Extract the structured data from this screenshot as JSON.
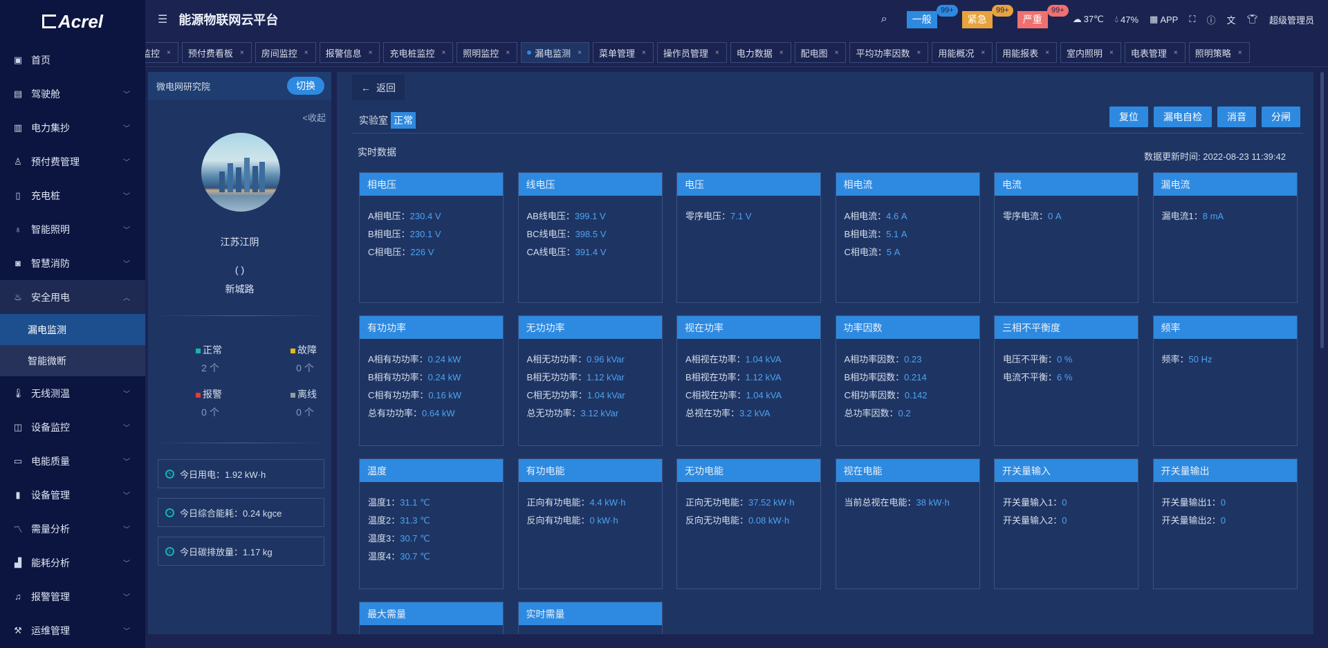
{
  "brand": "Acrel",
  "app_title": "能源物联网云平台",
  "colors": {
    "accent": "#2e8ae0",
    "value": "#4da3f0",
    "general": "#2e8ae0",
    "urgent": "#e8a33d",
    "severe": "#f07070",
    "normal": "#17b3b0",
    "fault": "#e5b619",
    "alarm": "#e83a3a",
    "offline": "#9a9a9a"
  },
  "header": {
    "alarms": [
      {
        "label": "一般",
        "count": "99+"
      },
      {
        "label": "紧急",
        "count": "99+"
      },
      {
        "label": "严重",
        "count": "99+"
      }
    ],
    "temperature": "37℃",
    "humidity": "47%",
    "app": "APP",
    "user": "超级管理员"
  },
  "sidebar": {
    "items": [
      {
        "label": "首页",
        "icon": "home-icon"
      },
      {
        "label": "驾驶舱",
        "icon": "cockpit-icon",
        "chev": true
      },
      {
        "label": "电力集抄",
        "icon": "meter-icon",
        "chev": true
      },
      {
        "label": "预付费管理",
        "icon": "user-icon",
        "chev": true
      },
      {
        "label": "充电桩",
        "icon": "charger-icon",
        "chev": true
      },
      {
        "label": "智能照明",
        "icon": "bulb-icon",
        "chev": true
      },
      {
        "label": "智慧消防",
        "icon": "fire-safety-icon",
        "chev": true
      },
      {
        "label": "安全用电",
        "icon": "flame-icon",
        "chev": true,
        "open": true,
        "children": [
          {
            "label": "漏电监测",
            "active": true
          },
          {
            "label": "智能微断"
          }
        ]
      },
      {
        "label": "无线测温",
        "icon": "thermometer-icon",
        "chev": true
      },
      {
        "label": "设备监控",
        "icon": "monitor-icon",
        "chev": true
      },
      {
        "label": "电能质量",
        "icon": "power-quality-icon",
        "chev": true
      },
      {
        "label": "设备管理",
        "icon": "device-icon",
        "chev": true
      },
      {
        "label": "需量分析",
        "icon": "trend-icon",
        "chev": true
      },
      {
        "label": "能耗分析",
        "icon": "bar-chart-icon",
        "chev": true
      },
      {
        "label": "报警管理",
        "icon": "bell-icon",
        "chev": true
      },
      {
        "label": "运维管理",
        "icon": "maintenance-icon",
        "chev": true
      }
    ]
  },
  "tabs": [
    {
      "label": "监控"
    },
    {
      "label": "预付费看板"
    },
    {
      "label": "房间监控"
    },
    {
      "label": "报警信息"
    },
    {
      "label": "充电桩监控"
    },
    {
      "label": "照明监控"
    },
    {
      "label": "漏电监测",
      "active": true
    },
    {
      "label": "菜单管理"
    },
    {
      "label": "操作员管理"
    },
    {
      "label": "电力数据"
    },
    {
      "label": "配电图"
    },
    {
      "label": "平均功率因数"
    },
    {
      "label": "用能概况"
    },
    {
      "label": "用能报表"
    },
    {
      "label": "室内照明"
    },
    {
      "label": "电表管理"
    },
    {
      "label": "照明策略"
    }
  ],
  "left_panel": {
    "org": "微电网研究院",
    "switch": "切换",
    "collapse": "<收起",
    "city": "江苏江阴",
    "paren": "( )",
    "street": "新城路",
    "stats": [
      {
        "label": "正常",
        "value": "2",
        "unit": "个"
      },
      {
        "label": "故障",
        "value": "0",
        "unit": "个"
      },
      {
        "label": "报警",
        "value": "0",
        "unit": "个"
      },
      {
        "label": "离线",
        "value": "0",
        "unit": "个"
      }
    ],
    "summary": [
      {
        "text": "今日用电：1.92 kW·h"
      },
      {
        "text": "今日综合能耗：0.24 kgce"
      },
      {
        "text": "今日碳排放量：1.17 kg"
      }
    ]
  },
  "main": {
    "back": "返回",
    "room": "实验室",
    "status": "正常",
    "buttons": [
      "复位",
      "漏电自检",
      "消音",
      "分闸"
    ],
    "section": "实时数据",
    "update_time": "数据更新时间: 2022-08-23 11:39:42",
    "cards": [
      {
        "title": "相电压",
        "lines": [
          {
            "k": "A相电压：",
            "v": "230.4 V"
          },
          {
            "k": "B相电压：",
            "v": "230.1 V"
          },
          {
            "k": "C相电压：",
            "v": "226 V"
          }
        ]
      },
      {
        "title": "线电压",
        "lines": [
          {
            "k": "AB线电压：",
            "v": "399.1 V"
          },
          {
            "k": "BC线电压：",
            "v": "398.5 V"
          },
          {
            "k": "CA线电压：",
            "v": "391.4 V"
          }
        ]
      },
      {
        "title": "电压",
        "lines": [
          {
            "k": "零序电压：",
            "v": "7.1 V"
          }
        ]
      },
      {
        "title": "相电流",
        "lines": [
          {
            "k": "A相电流：",
            "v": "4.6 A"
          },
          {
            "k": "B相电流：",
            "v": "5.1 A"
          },
          {
            "k": "C相电流：",
            "v": "5 A"
          }
        ]
      },
      {
        "title": "电流",
        "lines": [
          {
            "k": "零序电流：",
            "v": "0 A"
          }
        ]
      },
      {
        "title": "漏电流",
        "lines": [
          {
            "k": "漏电流1：",
            "v": "8 mA"
          }
        ]
      },
      {
        "title": "有功功率",
        "lines": [
          {
            "k": "A相有功功率：",
            "v": "0.24 kW"
          },
          {
            "k": "B相有功功率：",
            "v": "0.24 kW"
          },
          {
            "k": "C相有功功率：",
            "v": "0.16 kW"
          },
          {
            "k": "总有功功率：",
            "v": "0.64 kW"
          }
        ]
      },
      {
        "title": "无功功率",
        "lines": [
          {
            "k": "A相无功功率：",
            "v": "0.96 kVar"
          },
          {
            "k": "B相无功功率：",
            "v": "1.12 kVar"
          },
          {
            "k": "C相无功功率：",
            "v": "1.04 kVar"
          },
          {
            "k": "总无功功率：",
            "v": "3.12 kVar"
          }
        ]
      },
      {
        "title": "视在功率",
        "lines": [
          {
            "k": "A相视在功率：",
            "v": "1.04 kVA"
          },
          {
            "k": "B相视在功率：",
            "v": "1.12 kVA"
          },
          {
            "k": "C相视在功率：",
            "v": "1.04 kVA"
          },
          {
            "k": "总视在功率：",
            "v": "3.2 kVA"
          }
        ]
      },
      {
        "title": "功率因数",
        "lines": [
          {
            "k": "A相功率因数：",
            "v": "0.23"
          },
          {
            "k": "B相功率因数：",
            "v": "0.214"
          },
          {
            "k": "C相功率因数：",
            "v": "0.142"
          },
          {
            "k": "总功率因数：",
            "v": "0.2"
          }
        ]
      },
      {
        "title": "三相不平衡度",
        "lines": [
          {
            "k": "电压不平衡：",
            "v": "0 %"
          },
          {
            "k": "电流不平衡：",
            "v": "6 %"
          }
        ]
      },
      {
        "title": "频率",
        "lines": [
          {
            "k": "频率：",
            "v": "50 Hz"
          }
        ]
      },
      {
        "title": "温度",
        "lines": [
          {
            "k": "温度1：",
            "v": "31.1 ℃"
          },
          {
            "k": "温度2：",
            "v": "31.3 ℃"
          },
          {
            "k": "温度3：",
            "v": "30.7 ℃"
          },
          {
            "k": "温度4：",
            "v": "30.7 ℃"
          }
        ]
      },
      {
        "title": "有功电能",
        "lines": [
          {
            "k": "正向有功电能：",
            "v": "4.4 kW·h"
          },
          {
            "k": "反向有功电能：",
            "v": "0 kW·h"
          }
        ]
      },
      {
        "title": "无功电能",
        "lines": [
          {
            "k": "正向无功电能：",
            "v": "37.52 kW·h"
          },
          {
            "k": "反向无功电能：",
            "v": "0.08 kW·h"
          }
        ]
      },
      {
        "title": "视在电能",
        "lines": [
          {
            "k": "当前总视在电能：",
            "v": "38 kW·h"
          }
        ]
      },
      {
        "title": "开关量输入",
        "lines": [
          {
            "k": "开关量输入1：",
            "v": "0"
          },
          {
            "k": "开关量输入2：",
            "v": "0"
          }
        ]
      },
      {
        "title": "开关量输出",
        "lines": [
          {
            "k": "开关量输出1：",
            "v": "0"
          },
          {
            "k": "开关量输出2：",
            "v": "0"
          }
        ]
      },
      {
        "title": "最大需量",
        "lines": []
      },
      {
        "title": "实时需量",
        "lines": []
      }
    ]
  }
}
